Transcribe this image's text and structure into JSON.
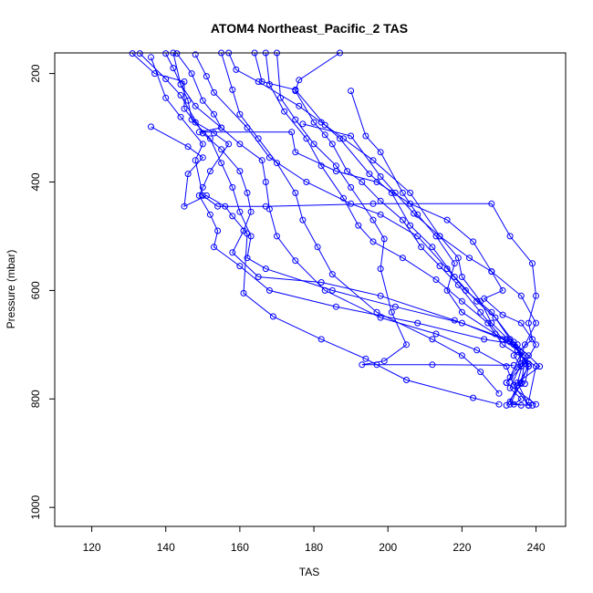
{
  "chart_data": {
    "type": "scatter",
    "title": "ATOM4 Northeast_Pacific_2 TAS",
    "xlabel": "TAS",
    "ylabel": "Pressure (mbar)",
    "xlim": [
      110,
      248
    ],
    "ylim": [
      1035,
      162
    ],
    "y_reversed": true,
    "x_ticks": [
      120,
      140,
      160,
      180,
      200,
      220,
      240
    ],
    "y_ticks": [
      200,
      400,
      600,
      800,
      1000
    ],
    "grid": false,
    "legend": "none",
    "color": "#0000ff",
    "series": [
      {
        "points": [
          [
            187,
            162
          ],
          [
            176,
            212
          ],
          [
            175,
            232
          ],
          [
            180,
            290
          ],
          [
            183,
            313
          ],
          [
            185,
            330
          ],
          [
            189,
            380
          ],
          [
            193,
            400
          ],
          [
            198,
            435
          ],
          [
            204,
            470
          ],
          [
            209,
            520
          ],
          [
            214,
            555
          ],
          [
            219,
            590
          ],
          [
            225,
            640
          ],
          [
            231,
            690
          ],
          [
            235,
            710
          ],
          [
            238,
            740
          ],
          [
            235,
            775
          ],
          [
            233,
            805
          ],
          [
            236,
            812
          ]
        ]
      },
      {
        "points": [
          [
            164,
            162
          ],
          [
            166,
            215
          ],
          [
            175,
            230
          ],
          [
            183,
            295
          ],
          [
            187,
            320
          ],
          [
            195,
            385
          ],
          [
            201,
            420
          ],
          [
            206,
            480
          ],
          [
            212,
            520
          ],
          [
            218,
            575
          ],
          [
            224,
            620
          ],
          [
            229,
            650
          ],
          [
            234,
            695
          ],
          [
            237,
            730
          ],
          [
            236,
            770
          ],
          [
            233,
            810
          ],
          [
            239,
            812
          ]
        ]
      },
      {
        "points": [
          [
            157,
            162
          ],
          [
            159,
            193
          ],
          [
            165,
            215
          ],
          [
            176,
            260
          ],
          [
            182,
            290
          ],
          [
            188,
            320
          ],
          [
            196,
            360
          ],
          [
            206,
            420
          ],
          [
            214,
            500
          ],
          [
            222,
            540
          ],
          [
            228,
            565
          ],
          [
            231,
            600
          ],
          [
            226,
            615
          ],
          [
            231,
            645
          ],
          [
            236,
            660
          ],
          [
            240,
            700
          ],
          [
            237,
            735
          ],
          [
            232,
            770
          ],
          [
            240,
            810
          ]
        ]
      },
      {
        "points": [
          [
            148,
            165
          ],
          [
            151,
            205
          ],
          [
            153,
            235
          ],
          [
            162,
            300
          ],
          [
            168,
            355
          ],
          [
            178,
            400
          ],
          [
            190,
            440
          ],
          [
            198,
            460
          ],
          [
            208,
            500
          ],
          [
            216,
            560
          ],
          [
            221,
            600
          ],
          [
            228,
            640
          ],
          [
            233,
            690
          ],
          [
            238,
            720
          ],
          [
            241,
            740
          ],
          [
            234,
            775
          ],
          [
            238,
            812
          ]
        ]
      },
      {
        "points": [
          [
            131,
            163
          ],
          [
            137,
            200
          ],
          [
            145,
            215
          ],
          [
            145,
            265
          ],
          [
            148,
            290
          ],
          [
            153,
            310
          ],
          [
            157,
            330
          ],
          [
            152,
            380
          ],
          [
            150,
            410
          ],
          [
            149,
            425
          ],
          [
            152,
            460
          ],
          [
            154,
            490
          ],
          [
            153,
            520
          ],
          [
            160,
            555
          ],
          [
            168,
            600
          ],
          [
            186,
            630
          ],
          [
            208,
            660
          ],
          [
            226,
            690
          ],
          [
            235,
            700
          ],
          [
            236,
            735
          ],
          [
            233,
            780
          ],
          [
            236,
            800
          ],
          [
            234,
            810
          ]
        ]
      },
      {
        "points": [
          [
            133,
            163
          ],
          [
            140,
            210
          ],
          [
            144,
            240
          ],
          [
            150,
            310
          ],
          [
            155,
            340
          ],
          [
            160,
            380
          ],
          [
            162,
            420
          ],
          [
            163,
            455
          ],
          [
            161,
            490
          ],
          [
            158,
            530
          ],
          [
            165,
            575
          ],
          [
            182,
            585
          ],
          [
            198,
            610
          ],
          [
            218,
            655
          ],
          [
            232,
            690
          ],
          [
            237,
            720
          ],
          [
            235,
            770
          ],
          [
            238,
            812
          ]
        ]
      },
      {
        "points": [
          [
            140,
            163
          ],
          [
            142,
            190
          ],
          [
            146,
            250
          ],
          [
            147,
            285
          ],
          [
            152,
            320
          ],
          [
            155,
            365
          ],
          [
            158,
            410
          ],
          [
            160,
            455
          ],
          [
            163,
            500
          ],
          [
            162,
            540
          ],
          [
            167,
            560
          ],
          [
            185,
            600
          ],
          [
            202,
            630
          ],
          [
            220,
            660
          ],
          [
            233,
            695
          ],
          [
            238,
            735
          ],
          [
            236,
            772
          ],
          [
            232,
            812
          ]
        ]
      },
      {
        "points": [
          [
            143,
            163
          ],
          [
            147,
            200
          ],
          [
            150,
            250
          ],
          [
            153,
            275
          ],
          [
            155,
            300
          ],
          [
            149,
            308
          ],
          [
            174,
            308
          ],
          [
            175,
            345
          ],
          [
            186,
            380
          ],
          [
            197,
            400
          ],
          [
            206,
            440
          ],
          [
            216,
            470
          ],
          [
            223,
            510
          ],
          [
            228,
            565
          ],
          [
            236,
            610
          ],
          [
            240,
            660
          ],
          [
            237,
            700
          ],
          [
            235,
            742
          ],
          [
            232,
            770
          ]
        ]
      },
      {
        "points": [
          [
            136,
            170
          ],
          [
            140,
            245
          ],
          [
            144,
            280
          ],
          [
            150,
            330
          ],
          [
            148,
            360
          ],
          [
            150,
            425
          ],
          [
            154,
            445
          ],
          [
            167,
            445
          ],
          [
            196,
            440
          ],
          [
            228,
            440
          ],
          [
            233,
            500
          ],
          [
            239,
            550
          ],
          [
            240,
            610
          ],
          [
            238,
            660
          ],
          [
            239,
            690
          ],
          [
            234,
            720
          ],
          [
            236,
            740
          ]
        ]
      },
      {
        "points": [
          [
            136,
            298
          ],
          [
            146,
            335
          ],
          [
            150,
            355
          ],
          [
            146,
            385
          ],
          [
            145,
            445
          ],
          [
            151,
            425
          ],
          [
            156,
            445
          ],
          [
            158,
            463
          ],
          [
            162,
            495
          ],
          [
            161,
            605
          ],
          [
            169,
            648
          ],
          [
            182,
            690
          ],
          [
            194,
            726
          ],
          [
            197,
            737
          ],
          [
            205,
            765
          ],
          [
            223,
            798
          ],
          [
            230,
            810
          ]
        ]
      },
      {
        "points": [
          [
            177,
            293
          ],
          [
            190,
            315
          ],
          [
            198,
            390
          ],
          [
            202,
            420
          ],
          [
            207,
            458
          ],
          [
            214,
            500
          ],
          [
            219,
            540
          ],
          [
            220,
            575
          ],
          [
            225,
            620
          ],
          [
            228,
            660
          ],
          [
            234,
            700
          ],
          [
            238,
            740
          ],
          [
            237,
            772
          ]
        ]
      },
      {
        "points": [
          [
            190,
            232
          ],
          [
            194,
            315
          ],
          [
            198,
            345
          ],
          [
            204,
            420
          ],
          [
            208,
            460
          ],
          [
            213,
            500
          ],
          [
            218,
            550
          ],
          [
            216,
            600
          ],
          [
            220,
            640
          ],
          [
            229,
            680
          ],
          [
            236,
            715
          ],
          [
            233,
            760
          ]
        ]
      },
      {
        "points": [
          [
            142,
            162
          ],
          [
            144,
            220
          ],
          [
            148,
            260
          ],
          [
            155,
            300
          ],
          [
            160,
            330
          ],
          [
            166,
            360
          ],
          [
            167,
            400
          ],
          [
            168,
            450
          ],
          [
            170,
            500
          ],
          [
            175,
            545
          ],
          [
            183,
            600
          ],
          [
            198,
            650
          ],
          [
            213,
            680
          ],
          [
            224,
            710
          ],
          [
            232,
            740
          ],
          [
            234,
            775
          ]
        ]
      },
      {
        "points": [
          [
            155,
            162
          ],
          [
            158,
            230
          ],
          [
            160,
            275
          ],
          [
            165,
            320
          ],
          [
            170,
            365
          ],
          [
            175,
            420
          ],
          [
            177,
            470
          ],
          [
            181,
            520
          ],
          [
            185,
            570
          ],
          [
            197,
            640
          ],
          [
            212,
            690
          ],
          [
            220,
            720
          ],
          [
            225,
            750
          ],
          [
            230,
            790
          ]
        ]
      },
      {
        "points": [
          [
            170,
            162
          ],
          [
            171,
            245
          ],
          [
            175,
            285
          ],
          [
            180,
            330
          ],
          [
            186,
            370
          ],
          [
            190,
            410
          ],
          [
            196,
            470
          ],
          [
            199,
            505
          ],
          [
            198,
            560
          ],
          [
            201,
            640
          ],
          [
            205,
            700
          ],
          [
            199,
            730
          ],
          [
            193,
            737
          ],
          [
            212,
            737
          ],
          [
            234,
            738
          ]
        ]
      },
      {
        "points": [
          [
            167,
            162
          ],
          [
            168,
            220
          ],
          [
            172,
            270
          ],
          [
            178,
            320
          ],
          [
            182,
            370
          ],
          [
            188,
            430
          ],
          [
            192,
            480
          ],
          [
            196,
            510
          ],
          [
            204,
            540
          ],
          [
            213,
            580
          ],
          [
            220,
            620
          ],
          [
            227,
            660
          ],
          [
            231,
            700
          ],
          [
            240,
            740
          ],
          [
            238,
            805
          ]
        ]
      }
    ]
  }
}
